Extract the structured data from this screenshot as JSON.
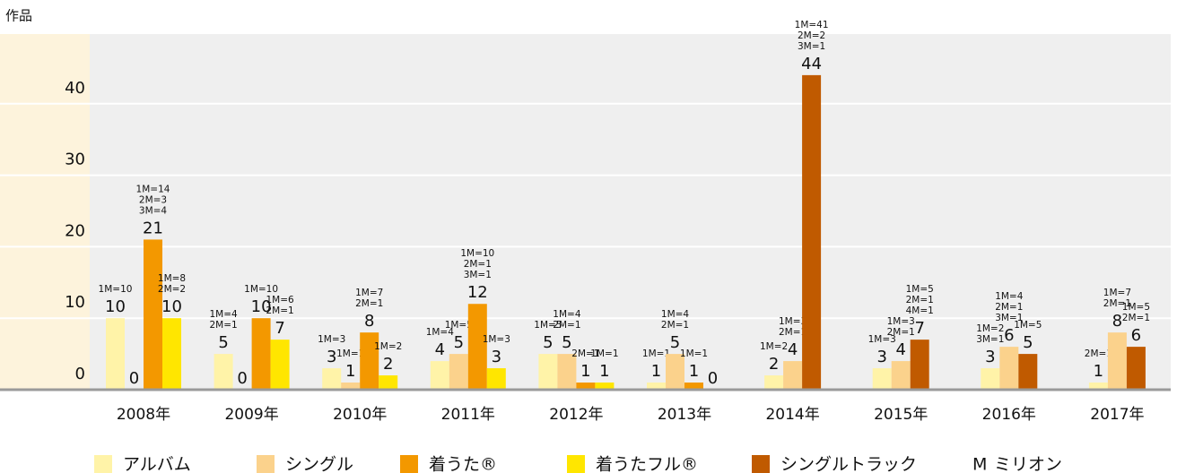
{
  "chart_data": {
    "type": "bar",
    "y_axis_label": "作品",
    "categories": [
      "2008年",
      "2009年",
      "2010年",
      "2011年",
      "2012年",
      "2013年",
      "2014年",
      "2015年",
      "2016年",
      "2017年"
    ],
    "series": [
      {
        "name": "アルバム",
        "color": "#fff3a8",
        "values": [
          10,
          5,
          3,
          4,
          5,
          1,
          2,
          3,
          3,
          1
        ],
        "annotations": [
          [
            "1M=10"
          ],
          [
            "1M=4",
            "2M=1"
          ],
          [
            "1M=3"
          ],
          [
            "1M=4"
          ],
          [
            "1M=5"
          ],
          [
            "1M=1"
          ],
          [
            "1M=2"
          ],
          [
            "1M=3"
          ],
          [
            "1M=2",
            "3M=1"
          ],
          [
            "2M=1"
          ]
        ]
      },
      {
        "name": "シングル",
        "color": "#fbd28c",
        "values": [
          0,
          0,
          1,
          5,
          5,
          5,
          4,
          4,
          6,
          8
        ],
        "annotations": [
          null,
          null,
          [
            "1M=1"
          ],
          [
            "1M=5"
          ],
          [
            "1M=4",
            "2M=1"
          ],
          [
            "1M=4",
            "2M=1"
          ],
          [
            "1M=3",
            "2M=1"
          ],
          [
            "1M=3",
            "2M=1"
          ],
          [
            "1M=4",
            "2M=1",
            "3M=1"
          ],
          [
            "1M=7",
            "2M=1"
          ]
        ]
      },
      {
        "name": "着うた®",
        "color": "#f39800",
        "values": [
          21,
          10,
          8,
          12,
          1,
          1,
          null,
          null,
          null,
          null
        ],
        "annotations": [
          [
            "1M=14",
            "2M=3",
            "3M=4"
          ],
          [
            "1M=10"
          ],
          [
            "1M=7",
            "2M=1"
          ],
          [
            "1M=10",
            "2M=1",
            "3M=1"
          ],
          [
            "2M=1"
          ],
          [
            "1M=1"
          ],
          null,
          null,
          null,
          null
        ]
      },
      {
        "name": "着うたフル®",
        "color": "#ffe600",
        "values": [
          10,
          7,
          2,
          3,
          1,
          0,
          null,
          null,
          null,
          null
        ],
        "annotations": [
          [
            "1M=8",
            "2M=2"
          ],
          [
            "1M=6",
            "2M=1"
          ],
          [
            "1M=2"
          ],
          [
            "1M=3"
          ],
          [
            "1M=1"
          ],
          null,
          null,
          null,
          null,
          null
        ]
      },
      {
        "name": "シングルトラック",
        "color": "#c05a00",
        "values": [
          null,
          null,
          null,
          null,
          null,
          null,
          44,
          7,
          5,
          6
        ],
        "annotations": [
          null,
          null,
          null,
          null,
          null,
          null,
          [
            "1M=41",
            "2M=2",
            "3M=1"
          ],
          [
            "1M=5",
            "2M=1",
            "4M=1"
          ],
          [
            "1M=5"
          ],
          [
            "1M=5",
            "2M=1"
          ]
        ]
      }
    ],
    "million_note": {
      "symbol": "M",
      "label": "ミリオン"
    },
    "ylim": [
      0,
      50
    ],
    "yticks": [
      0,
      10,
      20,
      30,
      40
    ],
    "grid": true
  }
}
